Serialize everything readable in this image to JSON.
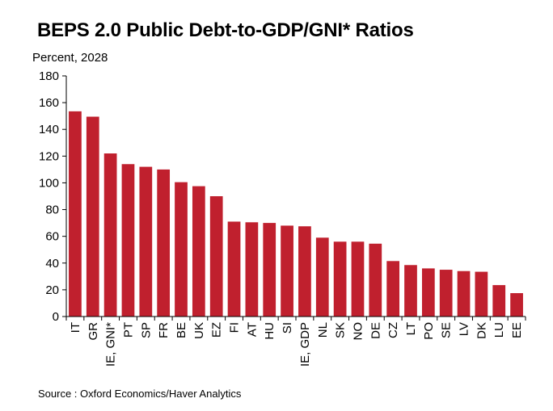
{
  "title": "BEPS 2.0 Public Debt-to-GDP/GNI* Ratios",
  "unit_label": "Percent, 2028",
  "source": "Source : Oxford Economics/Haver Analytics",
  "bar_color": "#c0202e",
  "chart_data": {
    "type": "bar",
    "title": "BEPS 2.0 Public Debt-to-GDP/GNI* Ratios",
    "ylabel": "Percent, 2028",
    "xlabel": "",
    "ylim": [
      0,
      180
    ],
    "yticks": [
      0,
      20,
      40,
      60,
      80,
      100,
      120,
      140,
      160,
      180
    ],
    "grid": false,
    "categories": [
      "IT",
      "GR",
      "IE, GNI*",
      "PT",
      "SP",
      "FR",
      "BE",
      "UK",
      "EZ",
      "FI",
      "AT",
      "HU",
      "SI",
      "IE, GDP",
      "NL",
      "SK",
      "NO",
      "DE",
      "CZ",
      "LT",
      "PO",
      "SE",
      "LV",
      "DK",
      "LU",
      "EE"
    ],
    "values": [
      153.5,
      149.5,
      122,
      114,
      112,
      110,
      100.5,
      97.5,
      90,
      71,
      70.5,
      70,
      68,
      67.5,
      59,
      56,
      56,
      54.5,
      41.5,
      38.5,
      36,
      35,
      34,
      33.5,
      23.5,
      17.5
    ]
  }
}
